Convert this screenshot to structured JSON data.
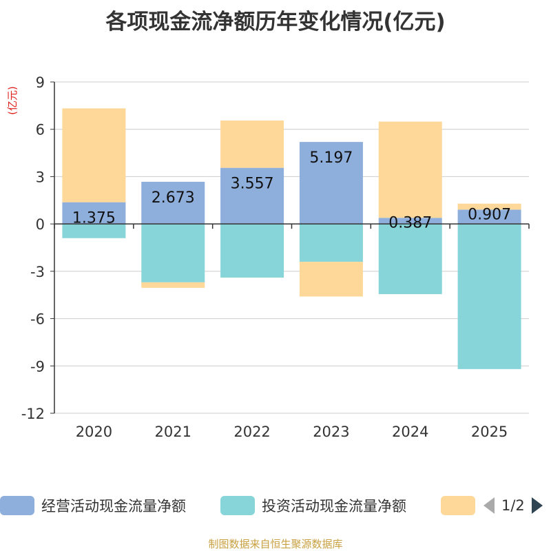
{
  "chart_data": {
    "type": "bar",
    "stacked": true,
    "title": "各项现金流净额历年变化情况(亿元)",
    "ylabel": "(亿元)",
    "xlabel": "",
    "categories": [
      "2020",
      "2021",
      "2022",
      "2023",
      "2024",
      "2025"
    ],
    "ylim": [
      -12,
      9
    ],
    "yticks": [
      9,
      6,
      3,
      0,
      -3,
      -6,
      -9,
      -12
    ],
    "grid": true,
    "series": [
      {
        "name": "经营活动现金流量净额",
        "color": "#8eaedb",
        "values": [
          1.375,
          2.673,
          3.557,
          5.197,
          0.387,
          0.907
        ],
        "show_labels": true
      },
      {
        "name": "投资活动现金流量净额",
        "color": "#87d5d8",
        "values": [
          -0.9,
          -3.7,
          -3.4,
          -2.4,
          -4.45,
          -9.2
        ],
        "show_labels": false
      },
      {
        "name": "",
        "color": "#fdd898",
        "values": [
          5.95,
          -0.35,
          3.0,
          -2.2,
          6.1,
          0.38
        ],
        "show_labels": false
      }
    ]
  },
  "legend": {
    "items": [
      {
        "label": "经营活动现金流量净额",
        "color": "#8eaedb"
      },
      {
        "label": "投资活动现金流量净额",
        "color": "#87d5d8"
      },
      {
        "label": "",
        "color": "#fdd898"
      }
    ],
    "page_text": "1/2"
  },
  "source": "制图数据来自恒生聚源数据库"
}
